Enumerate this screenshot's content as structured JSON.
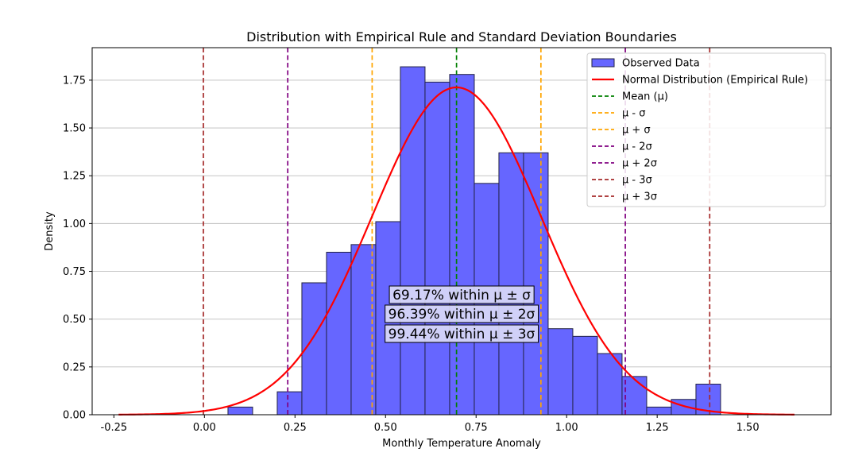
{
  "chart_data": {
    "type": "bar",
    "title": "Distribution with Empirical Rule and Standard Deviation Boundaries",
    "xlabel": "Monthly Temperature Anomaly",
    "ylabel": "Density",
    "xlim": [
      -0.31,
      1.73
    ],
    "ylim": [
      0,
      1.92
    ],
    "xticks": [
      "-0.25",
      "0.00",
      "0.25",
      "0.50",
      "0.75",
      "1.00",
      "1.25",
      "1.50"
    ],
    "xtick_values": [
      -0.25,
      0.0,
      0.25,
      0.5,
      0.75,
      1.0,
      1.25,
      1.5
    ],
    "yticks": [
      "0.00",
      "0.25",
      "0.50",
      "0.75",
      "1.00",
      "1.25",
      "1.50",
      "1.75"
    ],
    "ytick_values": [
      0.0,
      0.25,
      0.5,
      0.75,
      1.0,
      1.25,
      1.5,
      1.75
    ],
    "grid": "y-axis",
    "legend_position": "top-right",
    "histogram": {
      "name": "Observed Data",
      "color": "#6666ff",
      "edge_color": "#222244",
      "bin_edges": [
        0.065,
        0.133,
        0.201,
        0.269,
        0.337,
        0.405,
        0.473,
        0.541,
        0.609,
        0.677,
        0.745,
        0.813,
        0.881,
        0.949,
        1.017,
        1.085,
        1.153,
        1.221,
        1.289,
        1.357,
        1.425
      ],
      "values": [
        0.04,
        0.0,
        0.12,
        0.69,
        0.85,
        0.89,
        1.01,
        1.82,
        1.74,
        1.78,
        1.21,
        1.37,
        1.37,
        0.45,
        0.41,
        0.32,
        0.2,
        0.04,
        0.08,
        0.16
      ]
    },
    "normal_curve": {
      "name": "Normal Distribution (Empirical Rule)",
      "color": "#ff0000",
      "mean": 0.696,
      "std": 0.233,
      "x_range": [
        -0.237,
        1.629
      ]
    },
    "vlines": [
      {
        "name": "Mean (μ)",
        "x": 0.696,
        "color": "#008000"
      },
      {
        "name": "μ - σ",
        "x": 0.463,
        "color": "#ffa500"
      },
      {
        "name": "μ + σ",
        "x": 0.929,
        "color": "#ffa500"
      },
      {
        "name": "μ - 2σ",
        "x": 0.23,
        "color": "#800080"
      },
      {
        "name": "μ + 2σ",
        "x": 1.162,
        "color": "#800080"
      },
      {
        "name": "μ - 3σ",
        "x": -0.003,
        "color": "#a52a2a"
      },
      {
        "name": "μ + 3σ",
        "x": 1.395,
        "color": "#a52a2a"
      }
    ],
    "annotations": [
      "69.17% within μ ± σ",
      "96.39% within μ ± 2σ",
      "99.44% within μ ± 3σ"
    ]
  }
}
